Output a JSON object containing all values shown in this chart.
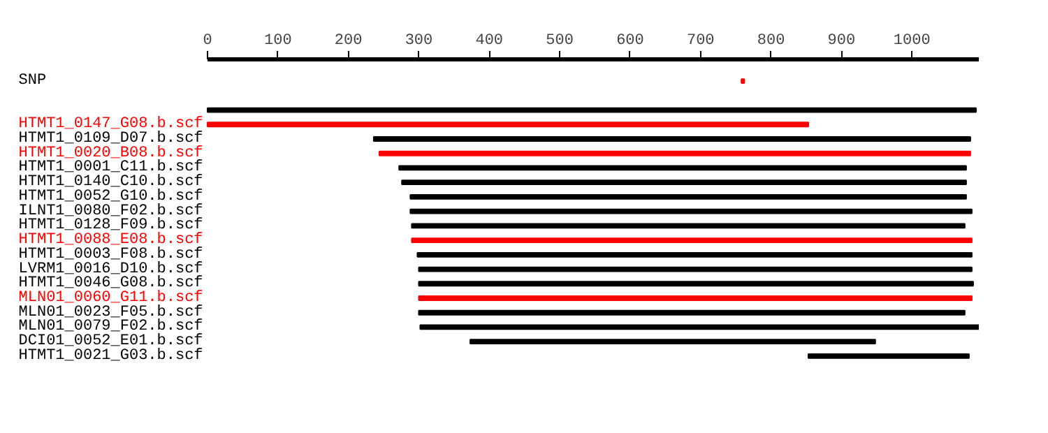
{
  "chart_data": {
    "type": "bar",
    "orientation": "horizontal",
    "grid": false,
    "categories": [
      "SNP",
      null,
      "HTMT1_0147_G08.b.scf",
      "HTMT1_0109_D07.b.scf",
      "HTMT1_0020_B08.b.scf",
      "HTMT1_0001_C11.b.scf",
      "HTMT1_0140_C10.b.scf",
      "HTMT1_0052_G10.b.scf",
      "ILNT1_0080_F02.b.scf",
      "HTMT1_0128_F09.b.scf",
      "HTMT1_0088_E08.b.scf",
      "HTMT1_0003_F08.b.scf",
      "LVRM1_0016_D10.b.scf",
      "HTMT1_0046_G08.b.scf",
      "MLN01_0060_G11.b.scf",
      "MLN01_0023_F05.b.scf",
      "MLN01_0079_F02.b.scf",
      "DCI01_0052_E01.b.scf",
      "HTMT1_0021_G03.b.scf"
    ],
    "base": [
      758,
      0,
      0,
      236,
      244,
      272,
      276,
      288,
      288,
      290,
      290,
      298,
      300,
      300,
      300,
      300,
      302,
      373,
      853
    ],
    "values": [
      4,
      1091,
      853,
      847,
      839,
      805,
      801,
      789,
      797,
      785,
      795,
      787,
      785,
      787,
      785,
      775,
      793,
      575,
      228
    ],
    "colors": [
      "#ff0000",
      "#000000",
      "#ff0000",
      "#000000",
      "#ff0000",
      "#000000",
      "#000000",
      "#000000",
      "#000000",
      "#000000",
      "#ff0000",
      "#000000",
      "#000000",
      "#000000",
      "#ff0000",
      "#000000",
      "#000000",
      "#000000",
      "#000000"
    ],
    "xlim": [
      0,
      1095
    ],
    "xticks": [
      0,
      100,
      200,
      300,
      400,
      500,
      600,
      700,
      800,
      900,
      1000
    ]
  }
}
